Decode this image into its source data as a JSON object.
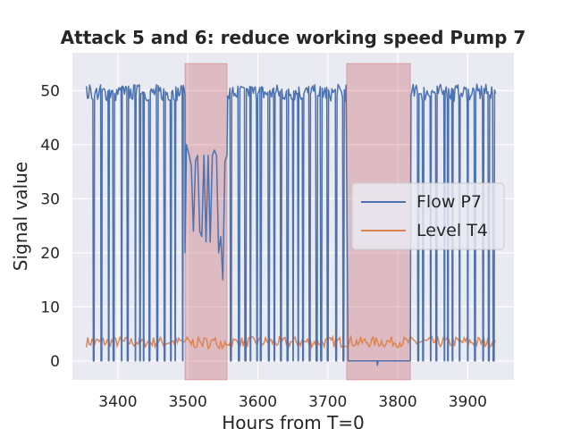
{
  "chart_data": {
    "type": "line",
    "title": "Attack 5 and 6: reduce working speed Pump 7",
    "xlabel": "Hours from T=0",
    "ylabel": "Signal value",
    "xlim": [
      3335,
      3966
    ],
    "ylim": [
      -3.5,
      57
    ],
    "xticks": [
      3400,
      3500,
      3600,
      3700,
      3800,
      3900
    ],
    "yticks": [
      0,
      10,
      20,
      30,
      40,
      50
    ],
    "grid": true,
    "legend_position": "center-right",
    "attack_regions": [
      {
        "x_start": 3496,
        "x_end": 3556,
        "y_top": 55
      },
      {
        "x_start": 3727,
        "x_end": 3818,
        "y_top": 55
      }
    ],
    "series": [
      {
        "name": "Flow P7",
        "color": "#4c72b0",
        "x_range": [
          3355,
          3940
        ],
        "high_level": 50,
        "low_level": 0,
        "attack_segment_1": {
          "x": [
            3496,
            3498,
            3500,
            3502,
            3505,
            3508,
            3511,
            3514,
            3517,
            3520,
            3523,
            3526,
            3529,
            3532,
            3535,
            3538,
            3541,
            3544,
            3547,
            3550,
            3553,
            3556
          ],
          "y": [
            20,
            40,
            39,
            38,
            36,
            24,
            37,
            38,
            24,
            23,
            38,
            22,
            38,
            22,
            38,
            39,
            38,
            20,
            23,
            15,
            37,
            38
          ]
        },
        "attack_segment_2": {
          "x": [
            3729,
            3818
          ],
          "y": [
            0,
            0
          ]
        }
      },
      {
        "name": "Level T4",
        "color": "#dd8452",
        "x_range": [
          3355,
          3940
        ],
        "typical_range": [
          2.5,
          4.5
        ]
      }
    ]
  }
}
